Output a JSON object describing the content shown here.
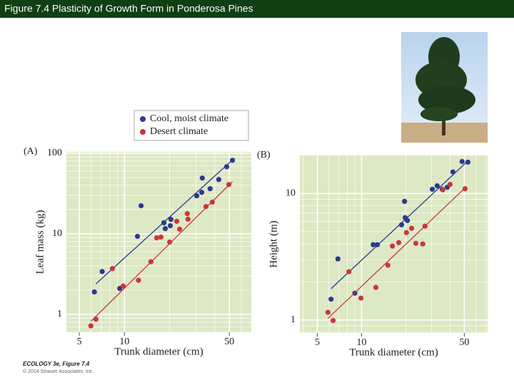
{
  "title": "Figure 7.4  Plasticity of Growth Form in Ponderosa Pines",
  "credits": {
    "book": "ECOLOGY 3e, Figure 7.4",
    "copyright": "© 2014 Sinauer Associates, Inc."
  },
  "chart_data": [
    {
      "type": "scatter",
      "panel": "(A)",
      "xlabel": "Trunk diameter (cm)",
      "ylabel": "Leaf mass (kg)",
      "log_x": true,
      "log_y": true,
      "grid": true,
      "xlim": [
        4.1,
        70
      ],
      "ylim": [
        0.6,
        104
      ],
      "xticks": [
        5,
        10,
        50
      ],
      "yticks": [
        1,
        10,
        100
      ],
      "series": [
        {
          "name": "Cool, moist climate",
          "color": "#2b3990",
          "x": [
            6.3,
            7.1,
            9.3,
            12.2,
            12.9,
            18.3,
            18.7,
            20.2,
            20.4,
            30.3,
            32.7,
            33.0,
            37.2,
            42.5,
            48.0,
            52.4
          ],
          "values": [
            1.9,
            3.4,
            2.1,
            9.3,
            22.3,
            13.7,
            11.6,
            12.6,
            15.1,
            29.6,
            32.7,
            49.2,
            36.3,
            47.2,
            68,
            81.7
          ],
          "fit_x": [
            6.45,
            54
          ],
          "fit_y": [
            2.39,
            86.7
          ]
        },
        {
          "name": "Desert climate",
          "color": "#c8373f",
          "x": [
            5.97,
            6.45,
            8.3,
            9.8,
            12.4,
            15.0,
            16.4,
            17.5,
            20.0,
            22.3,
            23.3,
            26.2,
            26.5,
            34.9,
            38.5,
            49.6
          ],
          "values": [
            0.72,
            0.87,
            3.7,
            2.25,
            2.65,
            4.5,
            8.9,
            9.1,
            7.9,
            14.3,
            11.4,
            17.8,
            15.2,
            21.8,
            24.7,
            40.9
          ],
          "fit_x": [
            5.97,
            52.4
          ],
          "fit_y": [
            0.82,
            44.4
          ]
        }
      ]
    },
    {
      "type": "scatter",
      "panel": "(B)",
      "xlabel": "Trunk diameter (cm)",
      "ylabel": "Height (m)",
      "log_x": true,
      "log_y": true,
      "grid": true,
      "xlim": [
        3.8,
        72
      ],
      "ylim": [
        0.79,
        20
      ],
      "xticks": [
        5,
        10,
        50
      ],
      "yticks": [
        1,
        10
      ],
      "series": [
        {
          "color": "#2b3990",
          "x": [
            6.2,
            6.9,
            9.0,
            12.0,
            12.8,
            18.7,
            19.6,
            19.8,
            20.5,
            30.3,
            32.7,
            35.4,
            38.3,
            41.8,
            48.3,
            52.9
          ],
          "values": [
            1.46,
            3.04,
            1.63,
            3.94,
            3.94,
            5.66,
            8.67,
            6.44,
            6.12,
            10.8,
            11.5,
            10.8,
            11.2,
            14.8,
            17.9,
            17.7
          ],
          "fit_x": [
            6.2,
            52.9
          ],
          "fit_y": [
            1.77,
            18.1
          ]
        },
        {
          "color": "#c8373f",
          "x": [
            5.9,
            6.4,
            8.2,
            9.9,
            12.5,
            15.1,
            16.2,
            17.9,
            20.2,
            21.9,
            23.4,
            26.1,
            27.0,
            35.7,
            40.0,
            50.6
          ],
          "values": [
            1.15,
            0.99,
            2.41,
            1.49,
            1.81,
            2.71,
            3.84,
            4.09,
            4.91,
            5.31,
            4.04,
            3.99,
            5.52,
            10.7,
            11.8,
            10.9
          ],
          "fit_x": [
            5.9,
            51.1
          ],
          "fit_y": [
            1.03,
            11.2
          ]
        }
      ]
    }
  ]
}
